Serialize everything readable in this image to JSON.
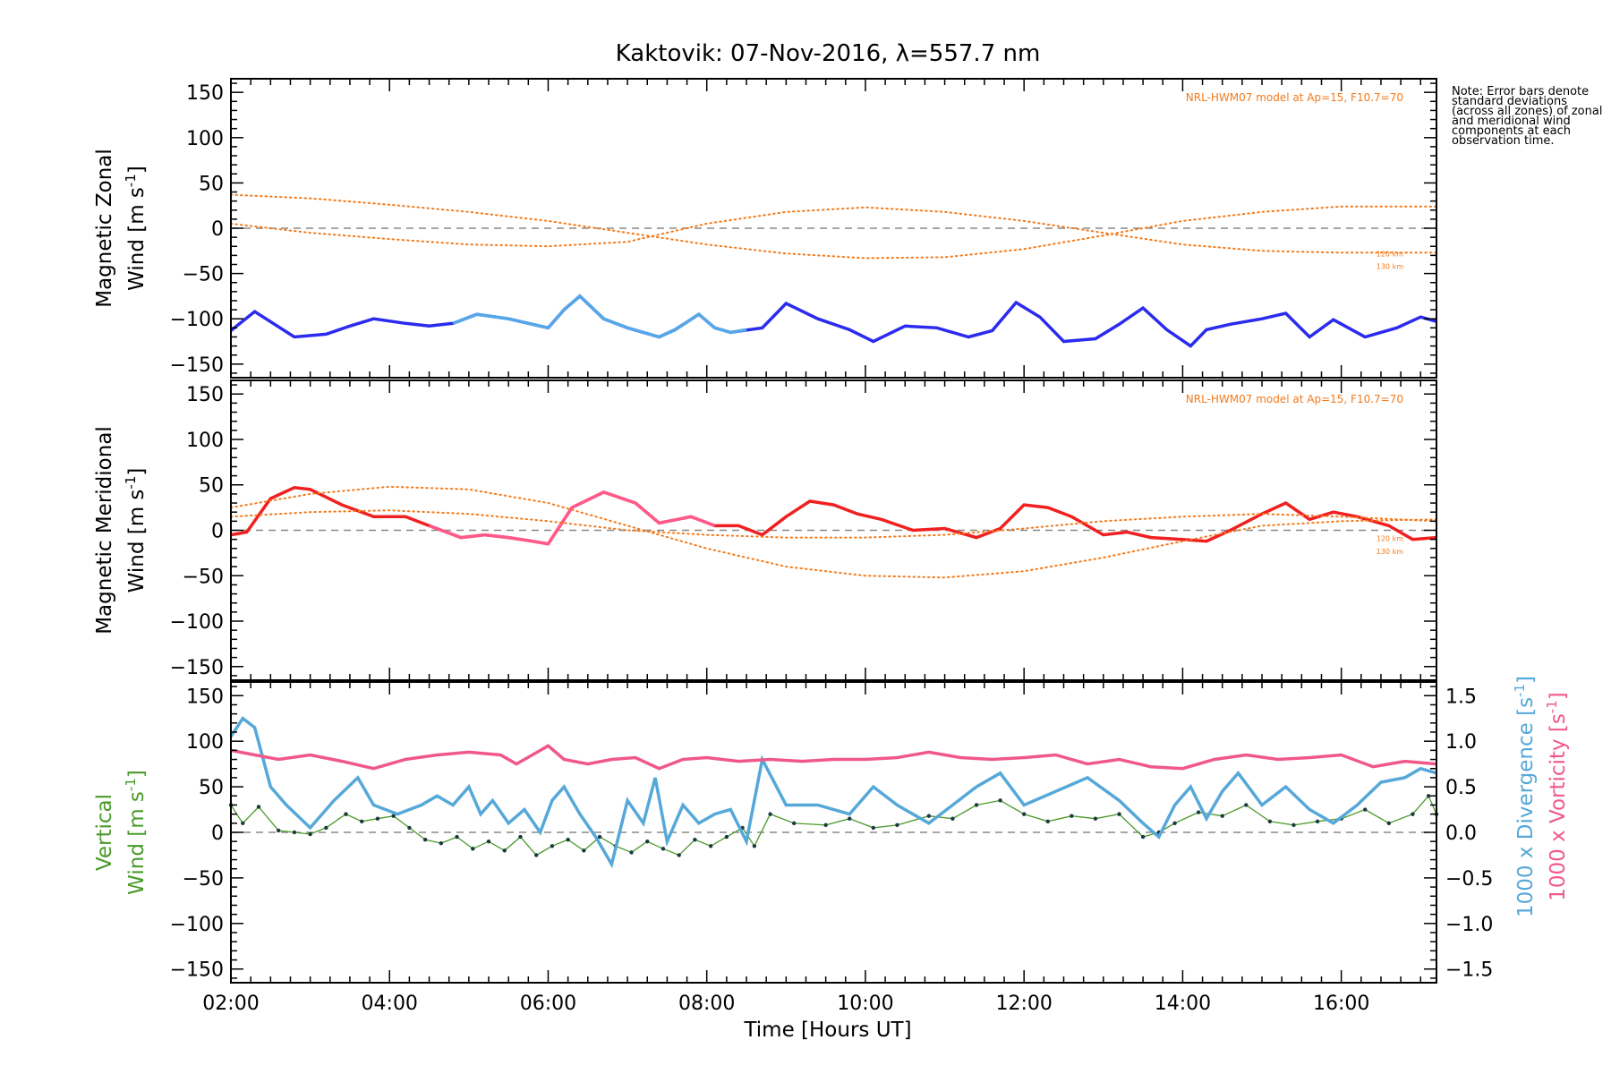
{
  "figure": {
    "title": "Kaktovik: 07-Nov-2016, λ=557.7 nm",
    "xlabel": "Time [Hours UT]",
    "note": "Note: Error bars denote standard deviations (across all zones) of zonal and meridional wind components at each observation time."
  },
  "chart_data": [
    {
      "type": "line",
      "panel": "zonal",
      "ylabel_line1": "Magnetic Zonal",
      "ylabel_line2": "Wind [m s",
      "ylabel_sup": "-1",
      "ylabel_close": "]",
      "xlim": [
        2.0,
        17.2
      ],
      "ylim": [
        -165,
        165
      ],
      "yticks": [
        -150,
        -100,
        -50,
        0,
        50,
        100,
        150
      ],
      "xticks": [
        2,
        4,
        6,
        8,
        10,
        12,
        14,
        16
      ],
      "xtick_labels": [
        "02:00",
        "04:00",
        "06:00",
        "08:00",
        "10:00",
        "12:00",
        "14:00",
        "16:00"
      ],
      "model_label": "NRL-HWM07 model at Ap=15, F10.7=70",
      "model_alt_labels": [
        "120 km",
        "130 km"
      ],
      "series": [
        {
          "role": "mean_wind",
          "color": "#2b2bf0",
          "x": [
            2.0,
            2.3,
            2.8,
            3.2,
            3.5,
            3.8,
            4.2,
            4.5,
            4.8,
            5.1,
            5.5,
            5.8,
            6.0,
            6.2,
            6.4,
            6.7,
            7.0,
            7.4,
            7.6,
            7.9,
            8.1,
            8.3,
            8.7,
            9.0,
            9.4,
            9.8,
            10.1,
            10.5,
            10.9,
            11.3,
            11.6,
            11.9,
            12.2,
            12.5,
            12.9,
            13.2,
            13.5,
            13.8,
            14.1,
            14.3,
            14.6,
            15.0,
            15.3,
            15.6,
            15.9,
            16.3,
            16.7,
            17.0,
            17.2
          ],
          "y": [
            -113,
            -92,
            -120,
            -117,
            -108,
            -100,
            -105,
            -108,
            -105,
            -95,
            -100,
            -106,
            -110,
            -90,
            -75,
            -100,
            -110,
            -120,
            -112,
            -95,
            -110,
            -115,
            -110,
            -83,
            -100,
            -112,
            -125,
            -108,
            -110,
            -120,
            -113,
            -82,
            -98,
            -125,
            -122,
            -106,
            -88,
            -112,
            -130,
            -112,
            -106,
            -100,
            -94,
            -120,
            -101,
            -120,
            -110,
            -98,
            -103
          ]
        },
        {
          "role": "mean_wind_highlight",
          "color": "#55a8e8",
          "x": [
            4.8,
            5.1,
            5.5,
            5.8,
            6.0,
            6.2,
            6.4,
            6.7,
            7.0,
            7.4,
            7.6,
            7.9,
            8.1,
            8.3,
            8.5
          ],
          "y": [
            -105,
            -95,
            -100,
            -106,
            -110,
            -90,
            -75,
            -100,
            -110,
            -120,
            -112,
            -95,
            -110,
            -115,
            -112
          ]
        },
        {
          "role": "model_120km",
          "color": "#f47a1a",
          "x": [
            2.0,
            3.0,
            4.0,
            5.0,
            6.0,
            7.0,
            8.0,
            9.0,
            10.0,
            11.0,
            12.0,
            13.0,
            14.0,
            15.0,
            16.0,
            17.2
          ],
          "y": [
            5,
            -5,
            -12,
            -18,
            -20,
            -15,
            5,
            18,
            23,
            18,
            8,
            -5,
            -18,
            -25,
            -27,
            -27
          ]
        },
        {
          "role": "model_130km",
          "color": "#f47a1a",
          "x": [
            2.0,
            3.0,
            4.0,
            5.0,
            6.0,
            7.0,
            8.0,
            9.0,
            10.0,
            11.0,
            12.0,
            13.0,
            14.0,
            15.0,
            16.0,
            17.2
          ],
          "y": [
            37,
            33,
            26,
            18,
            8,
            -5,
            -18,
            -28,
            -33,
            -32,
            -23,
            -8,
            8,
            18,
            24,
            24
          ]
        }
      ]
    },
    {
      "type": "line",
      "panel": "meridional",
      "ylabel_line1": "Magnetic Meridional",
      "ylabel_line2": "Wind [m s",
      "ylabel_sup": "-1",
      "ylabel_close": "]",
      "xlim": [
        2.0,
        17.2
      ],
      "ylim": [
        -165,
        165
      ],
      "yticks": [
        -150,
        -100,
        -50,
        0,
        50,
        100,
        150
      ],
      "model_label": "NRL-HWM07 model at Ap=15, F10.7=70",
      "model_alt_labels": [
        "120 km",
        "130 km"
      ],
      "series": [
        {
          "role": "mean_wind",
          "color": "#f02020",
          "x": [
            2.0,
            2.2,
            2.5,
            2.8,
            3.0,
            3.4,
            3.8,
            4.2,
            4.5,
            4.9,
            5.2,
            5.5,
            5.8,
            6.0,
            6.3,
            6.7,
            7.1,
            7.4,
            7.8,
            8.1,
            8.4,
            8.7,
            9.0,
            9.3,
            9.6,
            9.9,
            10.2,
            10.6,
            11.0,
            11.4,
            11.7,
            12.0,
            12.3,
            12.6,
            13.0,
            13.3,
            13.6,
            14.0,
            14.3,
            14.6,
            15.0,
            15.3,
            15.6,
            15.9,
            16.2,
            16.6,
            16.9,
            17.2
          ],
          "y": [
            -5,
            -2,
            35,
            47,
            45,
            28,
            15,
            15,
            5,
            -8,
            -5,
            -8,
            -12,
            -15,
            25,
            42,
            30,
            8,
            15,
            5,
            5,
            -5,
            15,
            32,
            28,
            18,
            12,
            0,
            2,
            -8,
            2,
            28,
            25,
            15,
            -5,
            -2,
            -8,
            -10,
            -12,
            0,
            18,
            30,
            12,
            20,
            15,
            5,
            -10,
            -8
          ]
        },
        {
          "role": "mean_wind_highlight",
          "color": "#ff5a8a",
          "x": [
            4.5,
            4.9,
            5.2,
            5.5,
            5.8,
            6.0,
            6.3,
            6.7,
            7.1,
            7.4,
            7.8,
            8.1
          ],
          "y": [
            5,
            -8,
            -5,
            -8,
            -12,
            -15,
            25,
            42,
            30,
            8,
            15,
            5
          ]
        },
        {
          "role": "model_120km",
          "color": "#f47a1a",
          "x": [
            2.0,
            3.0,
            4.0,
            5.0,
            6.0,
            7.0,
            8.0,
            9.0,
            10.0,
            11.0,
            12.0,
            13.0,
            14.0,
            15.0,
            16.0,
            17.2
          ],
          "y": [
            25,
            40,
            48,
            45,
            30,
            5,
            -20,
            -40,
            -50,
            -52,
            -45,
            -30,
            -12,
            5,
            10,
            12
          ]
        },
        {
          "role": "model_130km",
          "color": "#f47a1a",
          "x": [
            2.0,
            3.0,
            4.0,
            5.0,
            6.0,
            7.0,
            8.0,
            9.0,
            10.0,
            11.0,
            12.0,
            13.0,
            14.0,
            15.0,
            16.0,
            17.2
          ],
          "y": [
            15,
            20,
            22,
            18,
            10,
            0,
            -5,
            -8,
            -8,
            -5,
            2,
            10,
            15,
            18,
            15,
            10
          ]
        }
      ]
    },
    {
      "type": "line",
      "panel": "vertical",
      "ylabel_line1": "Vertical",
      "ylabel_line2": "Wind [m s",
      "ylabel_sup": "-1",
      "ylabel_close": "]",
      "xlim": [
        2.0,
        17.2
      ],
      "ylim": [
        -165,
        165
      ],
      "yticks": [
        -150,
        -100,
        -50,
        0,
        50,
        100,
        150
      ],
      "y2lim": [
        -1.65,
        1.65
      ],
      "y2ticks": [
        -1.5,
        -1.0,
        -0.5,
        0.0,
        0.5,
        1.0,
        1.5
      ],
      "y2tick_labels": [
        "−1.5",
        "−1.0",
        "−0.5",
        "0.0",
        "0.5",
        "1.0",
        "1.5"
      ],
      "y2label_divergence": "1000 x Divergence [s",
      "y2label_vorticity": "1000 x Vorticity [s",
      "y2label_sup": "-1",
      "y2label_close": "]",
      "series": [
        {
          "role": "vertical_wind",
          "color": "#4a9a2a",
          "x": [
            2.0,
            2.15,
            2.35,
            2.6,
            2.8,
            3.0,
            3.2,
            3.45,
            3.65,
            3.85,
            4.05,
            4.25,
            4.45,
            4.65,
            4.85,
            5.05,
            5.25,
            5.45,
            5.65,
            5.85,
            6.05,
            6.25,
            6.45,
            6.65,
            6.85,
            7.05,
            7.25,
            7.45,
            7.65,
            7.85,
            8.05,
            8.25,
            8.45,
            8.6,
            8.8,
            9.1,
            9.5,
            9.8,
            10.1,
            10.4,
            10.8,
            11.1,
            11.4,
            11.7,
            12.0,
            12.3,
            12.6,
            12.9,
            13.2,
            13.5,
            13.7,
            13.9,
            14.2,
            14.5,
            14.8,
            15.1,
            15.4,
            15.7,
            16.0,
            16.3,
            16.6,
            16.9,
            17.1,
            17.2
          ],
          "y": [
            30,
            10,
            28,
            2,
            0,
            -2,
            5,
            20,
            12,
            15,
            18,
            5,
            -8,
            -12,
            -5,
            -18,
            -10,
            -20,
            -5,
            -25,
            -15,
            -8,
            -20,
            -5,
            -15,
            -22,
            -10,
            -18,
            -25,
            -8,
            -15,
            -5,
            5,
            -15,
            20,
            10,
            8,
            15,
            5,
            8,
            18,
            15,
            30,
            35,
            20,
            12,
            18,
            15,
            20,
            -5,
            0,
            10,
            22,
            18,
            30,
            12,
            8,
            12,
            15,
            25,
            10,
            20,
            40,
            20
          ]
        },
        {
          "role": "divergence",
          "axis": "y2",
          "color": "#55a8d8",
          "x": [
            2.0,
            2.15,
            2.3,
            2.5,
            2.7,
            3.0,
            3.3,
            3.6,
            3.8,
            4.1,
            4.4,
            4.6,
            4.8,
            5.0,
            5.15,
            5.3,
            5.5,
            5.7,
            5.9,
            6.05,
            6.2,
            6.4,
            6.6,
            6.8,
            7.0,
            7.2,
            7.35,
            7.5,
            7.7,
            7.9,
            8.1,
            8.3,
            8.5,
            8.7,
            9.0,
            9.4,
            9.8,
            10.1,
            10.4,
            10.8,
            11.1,
            11.4,
            11.7,
            12.0,
            12.4,
            12.8,
            13.2,
            13.5,
            13.7,
            13.9,
            14.1,
            14.3,
            14.5,
            14.7,
            15.0,
            15.3,
            15.6,
            15.9,
            16.2,
            16.5,
            16.8,
            17.0,
            17.2
          ],
          "y": [
            1.05,
            1.25,
            1.15,
            0.5,
            0.3,
            0.05,
            0.35,
            0.6,
            0.3,
            0.2,
            0.3,
            0.4,
            0.3,
            0.5,
            0.2,
            0.35,
            0.1,
            0.25,
            0.0,
            0.35,
            0.5,
            0.2,
            -0.05,
            -0.35,
            0.35,
            0.1,
            0.6,
            -0.1,
            0.3,
            0.1,
            0.2,
            0.25,
            -0.1,
            0.8,
            0.3,
            0.3,
            0.2,
            0.5,
            0.3,
            0.1,
            0.3,
            0.5,
            0.65,
            0.3,
            0.45,
            0.6,
            0.35,
            0.1,
            -0.05,
            0.3,
            0.5,
            0.15,
            0.45,
            0.65,
            0.3,
            0.5,
            0.25,
            0.1,
            0.3,
            0.55,
            0.6,
            0.7,
            0.65
          ]
        },
        {
          "role": "vorticity",
          "axis": "y2",
          "color": "#f0588a",
          "x": [
            2.0,
            2.3,
            2.6,
            3.0,
            3.4,
            3.8,
            4.2,
            4.6,
            5.0,
            5.4,
            5.6,
            5.8,
            6.0,
            6.2,
            6.5,
            6.8,
            7.1,
            7.4,
            7.7,
            8.0,
            8.4,
            8.8,
            9.2,
            9.6,
            10.0,
            10.4,
            10.8,
            11.2,
            11.6,
            12.0,
            12.4,
            12.8,
            13.2,
            13.6,
            14.0,
            14.4,
            14.8,
            15.2,
            15.6,
            16.0,
            16.4,
            16.8,
            17.2
          ],
          "y": [
            0.9,
            0.85,
            0.8,
            0.85,
            0.78,
            0.7,
            0.8,
            0.85,
            0.88,
            0.85,
            0.75,
            0.85,
            0.95,
            0.8,
            0.75,
            0.8,
            0.82,
            0.7,
            0.8,
            0.82,
            0.78,
            0.8,
            0.78,
            0.8,
            0.8,
            0.82,
            0.88,
            0.82,
            0.8,
            0.82,
            0.85,
            0.75,
            0.8,
            0.72,
            0.7,
            0.8,
            0.85,
            0.8,
            0.82,
            0.85,
            0.72,
            0.78,
            0.75
          ]
        }
      ]
    }
  ]
}
